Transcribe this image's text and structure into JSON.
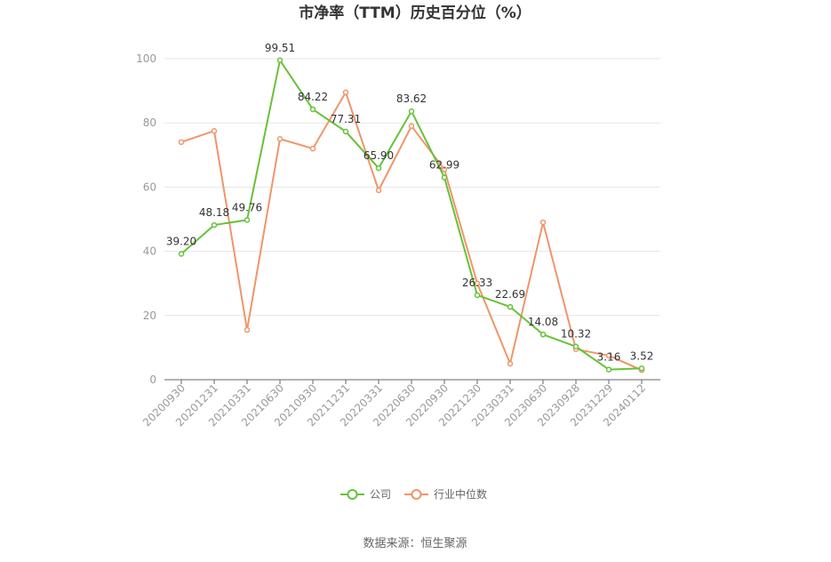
{
  "chart_data": {
    "type": "line",
    "title": "市净率（TTM）历史百分位（%）",
    "categories": [
      "20200930",
      "20201231",
      "20210331",
      "20210630",
      "20210930",
      "20211231",
      "20220331",
      "20220630",
      "20220930",
      "20221230",
      "20230331",
      "20230630",
      "20230928",
      "20231229",
      "20240112"
    ],
    "series": [
      {
        "name": "公司",
        "color": "#67c23a",
        "values": [
          39.2,
          48.18,
          49.76,
          99.51,
          84.22,
          77.31,
          65.9,
          83.62,
          62.99,
          26.33,
          22.69,
          14.08,
          10.32,
          3.16,
          3.52
        ],
        "labels": [
          "39.20",
          "48.18",
          "49.76",
          "99.51",
          "84.22",
          "77.31",
          "65.90",
          "83.62",
          "62.99",
          "26.33",
          "22.69",
          "14.08",
          "10.32",
          "3.16",
          "3.52"
        ]
      },
      {
        "name": "行业中位数",
        "color": "#f0956a",
        "values": [
          74,
          77.5,
          15.5,
          75,
          72,
          89.5,
          59,
          79,
          65.5,
          30,
          5,
          49,
          9.5,
          7.5,
          3
        ]
      }
    ],
    "ylim": [
      0,
      100
    ],
    "yticks": [
      "0",
      "20",
      "40",
      "60",
      "80",
      "100"
    ],
    "grid": true,
    "legend": "bottom-center",
    "source": "数据来源：恒生聚源"
  }
}
